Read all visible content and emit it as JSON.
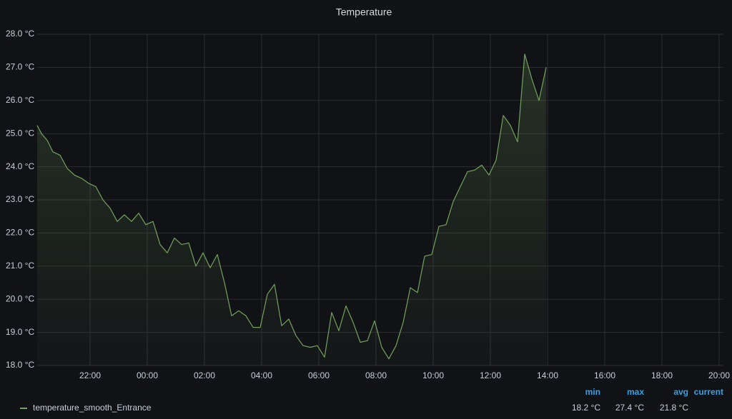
{
  "chart_data": {
    "type": "line",
    "title": "Temperature",
    "x": [
      20.15,
      20.3,
      20.5,
      20.7,
      20.95,
      21.2,
      21.45,
      21.7,
      21.95,
      22.2,
      22.45,
      22.7,
      22.95,
      23.2,
      23.45,
      23.7,
      23.95,
      24.2,
      24.45,
      24.7,
      24.95,
      25.2,
      25.45,
      25.7,
      25.95,
      26.2,
      26.45,
      26.7,
      26.95,
      27.2,
      27.45,
      27.7,
      27.95,
      28.2,
      28.45,
      28.7,
      28.95,
      29.2,
      29.45,
      29.7,
      29.95,
      30.2,
      30.45,
      30.7,
      30.95,
      31.2,
      31.45,
      31.7,
      31.95,
      32.2,
      32.45,
      32.7,
      32.95,
      33.2,
      33.45,
      33.7,
      33.95,
      34.2,
      34.45,
      34.7,
      34.95,
      35.2,
      35.45,
      35.7,
      35.95,
      36.2,
      36.45,
      36.7,
      36.95,
      37.2,
      37.45,
      37.7,
      37.95
    ],
    "series": [
      {
        "name": "temperature_smooth_Entrance",
        "color": "#73a35c",
        "values": [
          25.25,
          25.0,
          24.8,
          24.45,
          24.35,
          23.95,
          23.75,
          23.65,
          23.5,
          23.4,
          23.0,
          22.75,
          22.35,
          22.55,
          22.35,
          22.6,
          22.25,
          22.35,
          21.65,
          21.4,
          21.85,
          21.65,
          21.7,
          21.0,
          21.4,
          20.95,
          21.35,
          20.5,
          19.5,
          19.65,
          19.5,
          19.15,
          19.15,
          20.15,
          20.45,
          19.2,
          19.4,
          18.9,
          18.6,
          18.55,
          18.6,
          18.25,
          19.6,
          19.05,
          19.8,
          19.3,
          18.7,
          18.75,
          19.35,
          18.55,
          18.2,
          18.6,
          19.3,
          20.35,
          20.2,
          21.3,
          21.35,
          22.2,
          22.25,
          22.95,
          23.4,
          23.85,
          23.9,
          24.05,
          23.75,
          24.2,
          25.55,
          25.25,
          24.75,
          27.4,
          26.65,
          26.0,
          27.0
        ]
      }
    ],
    "xlim": [
      20.15,
      44.15
    ],
    "xticks": [
      {
        "value": 22,
        "label": "22:00"
      },
      {
        "value": 24,
        "label": "00:00"
      },
      {
        "value": 26,
        "label": "02:00"
      },
      {
        "value": 28,
        "label": "04:00"
      },
      {
        "value": 30,
        "label": "06:00"
      },
      {
        "value": 32,
        "label": "08:00"
      },
      {
        "value": 34,
        "label": "10:00"
      },
      {
        "value": 36,
        "label": "12:00"
      },
      {
        "value": 38,
        "label": "14:00"
      },
      {
        "value": 40,
        "label": "16:00"
      },
      {
        "value": 42,
        "label": "18:00"
      },
      {
        "value": 44,
        "label": "20:00"
      }
    ],
    "ylim": [
      18,
      28
    ],
    "yticks": [
      {
        "value": 18,
        "label": "18.0 °C"
      },
      {
        "value": 19,
        "label": "19.0 °C"
      },
      {
        "value": 20,
        "label": "20.0 °C"
      },
      {
        "value": 21,
        "label": "21.0 °C"
      },
      {
        "value": 22,
        "label": "22.0 °C"
      },
      {
        "value": 23,
        "label": "23.0 °C"
      },
      {
        "value": 24,
        "label": "24.0 °C"
      },
      {
        "value": 25,
        "label": "25.0 °C"
      },
      {
        "value": 26,
        "label": "26.0 °C"
      },
      {
        "value": 27,
        "label": "27.0 °C"
      },
      {
        "value": 28,
        "label": "28.0 °C"
      }
    ],
    "grid": true,
    "legend": {
      "position": "bottom",
      "columns": [
        {
          "header": "min",
          "value": "18.2 °C"
        },
        {
          "header": "max",
          "value": "27.4 °C"
        },
        {
          "header": "avg",
          "value": "21.8 °C"
        },
        {
          "header": "current"
        }
      ]
    }
  }
}
